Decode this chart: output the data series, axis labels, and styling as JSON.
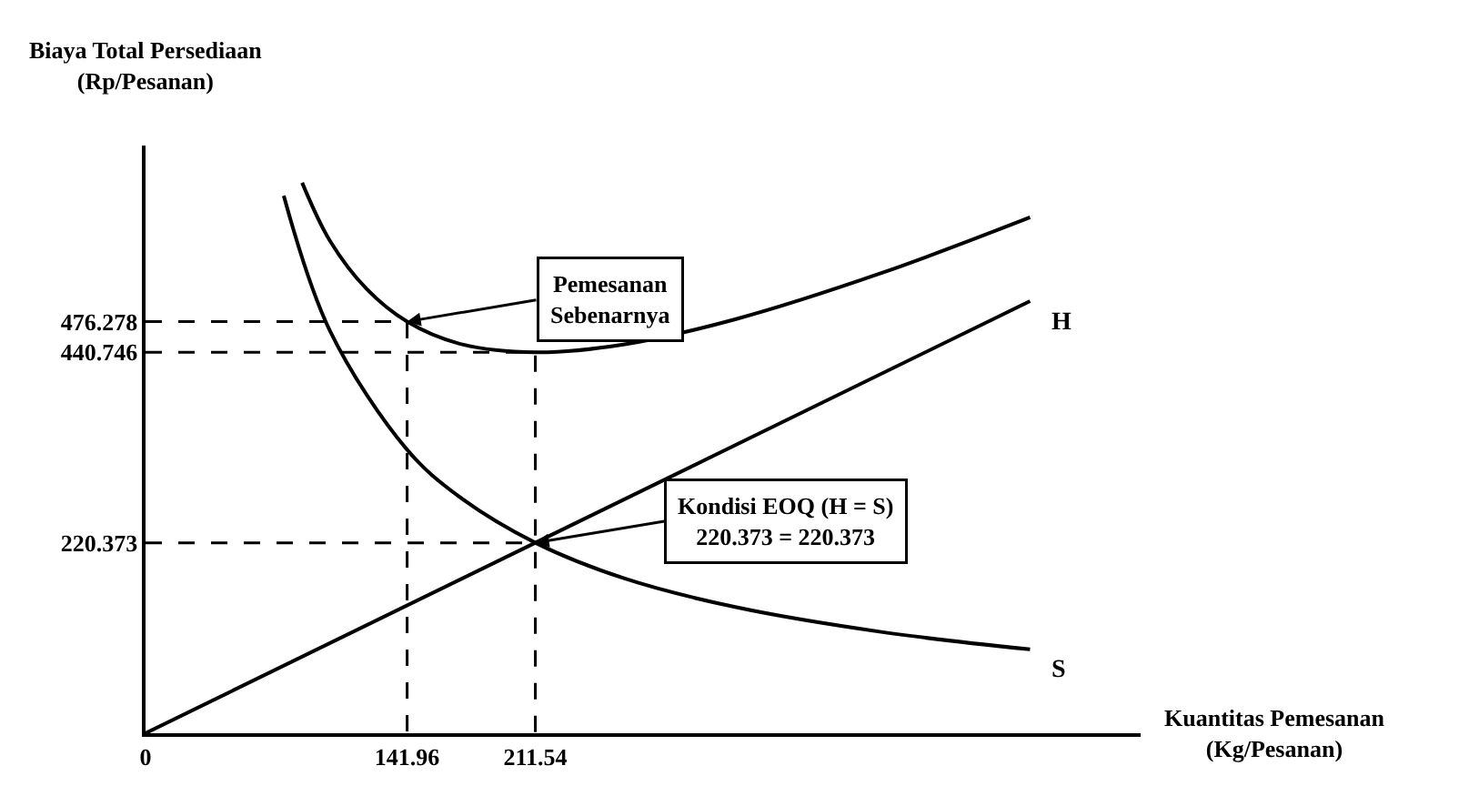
{
  "chart_data": {
    "type": "line",
    "xlabel": "Kuantitas Pemesanan\n(Kg/Pesanan)",
    "ylabel": "Biaya Total Persediaan\n(Rp/Pesanan)",
    "xlim": [
      0,
      540
    ],
    "ylim": [
      0,
      680
    ],
    "xticks": [
      0,
      141.96,
      211.54
    ],
    "yticks": [
      220.373,
      440.746,
      476.278
    ],
    "legend": false,
    "marker": "none",
    "series": [
      {
        "color": "#000000",
        "x": [
          85,
          100,
          120,
          141.96,
          170,
          211.54,
          260,
          320,
          400,
          480
        ],
        "values": [
          637,
          570,
          514,
          476.278,
          451,
          440.746,
          450,
          479,
          533,
          597
        ]
      },
      {
        "name": "H",
        "color": "#000000",
        "x": [
          0,
          211.54,
          480
        ],
        "values": [
          0,
          220.373,
          500.0
        ]
      },
      {
        "name": "S",
        "color": "#000000",
        "x": [
          75,
          100,
          141.96,
          170,
          211.54,
          260,
          320,
          400,
          480
        ],
        "values": [
          622,
          466,
          328,
          274,
          220.373,
          179,
          146,
          117,
          97
        ]
      },
      {
        "color": "#000000",
        "line_style": "dashed",
        "x": [
          0,
          141.96,
          141.96
        ],
        "values": [
          476.278,
          476.278,
          0
        ]
      },
      {
        "color": "#000000",
        "line_style": "dashed",
        "x": [
          0,
          211.54,
          211.54
        ],
        "values": [
          440.746,
          440.746,
          0
        ]
      },
      {
        "color": "#000000",
        "line_style": "dashed",
        "x": [
          0,
          211.54
        ],
        "values": [
          220.373,
          220.373
        ]
      }
    ],
    "annotations": [
      {
        "text": "Pemesanan\nSebenarnya",
        "x": 141.96,
        "y": 476.278
      },
      {
        "text": "Kondisi EOQ (H = S)\n220.373 = 220.373",
        "x": 211.54,
        "y": 220.373
      }
    ]
  }
}
